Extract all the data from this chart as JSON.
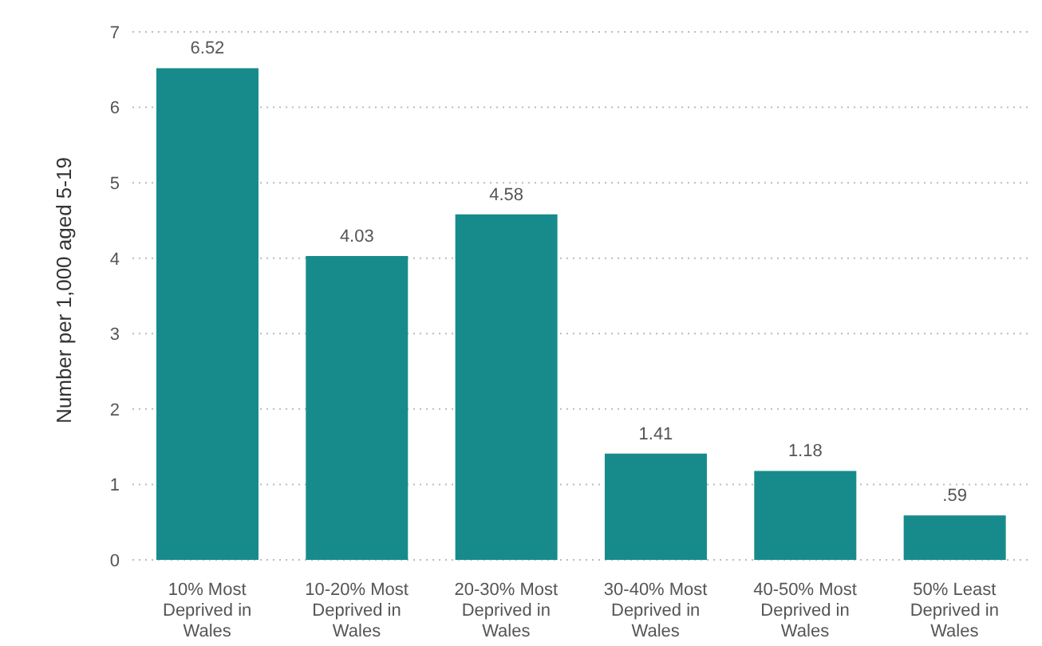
{
  "chart_data": {
    "type": "bar",
    "ylabel": "Number per 1,000 aged 5-19",
    "categories": [
      "10% Most Deprived in Wales",
      "10-20% Most Deprived in Wales",
      "20-30% Most Deprived in Wales",
      "30-40% Most Deprived in Wales",
      "40-50% Most Deprived in Wales",
      "50% Least Deprived in Wales"
    ],
    "values": [
      6.52,
      4.03,
      4.58,
      1.41,
      1.18,
      0.59
    ],
    "value_labels": [
      "6.52",
      "4.03",
      "4.58",
      "1.41",
      "1.18",
      ".59"
    ],
    "color": "#178b8b",
    "ylim": [
      0,
      7
    ],
    "yticks": [
      0,
      1,
      2,
      3,
      4,
      5,
      6,
      7
    ],
    "grid": "y"
  }
}
